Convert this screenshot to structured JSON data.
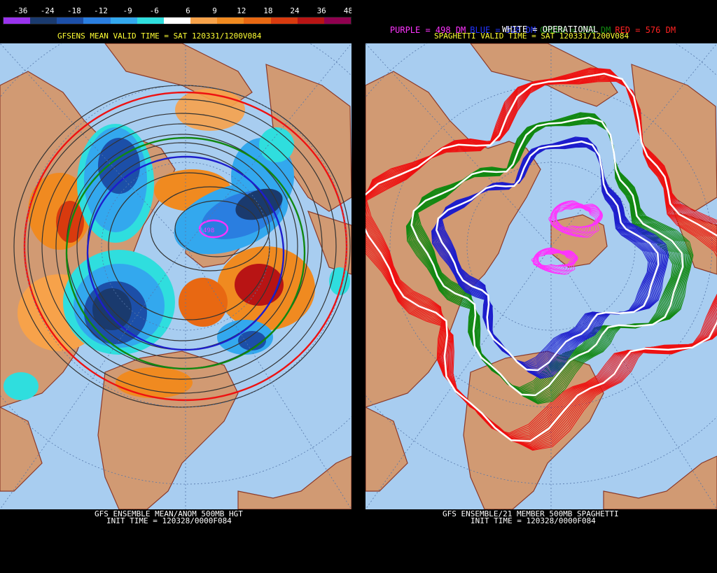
{
  "left": {
    "colorbar_labels": [
      "-36",
      "-24",
      "-18",
      "-12",
      "-9",
      "-6",
      "6",
      "9",
      "12",
      "18",
      "24",
      "36",
      "48"
    ],
    "colorbar_colors": [
      "#9933ee",
      "#1a3a6e",
      "#1c4fa8",
      "#2a7ee0",
      "#33a8ee",
      "#2fdede",
      "#ffffff",
      "#f7a24a",
      "#f08a20",
      "#e86812",
      "#d83a0e",
      "#b81414",
      "#900050"
    ],
    "header": "GFSENS MEAN VALID TIME = SAT 120331/1200V084",
    "footer_line1": "GFS ENSEMBLE MEAN/ANOM 500MB HGT",
    "footer_line2": "INIT TIME = 120328/0000F084",
    "contour_label": "498"
  },
  "right": {
    "legend": [
      {
        "text": "PURPLE = 498 DM",
        "color": "#ff33ff"
      },
      {
        "text": "BLUE = 528 DM",
        "color": "#2233ff"
      },
      {
        "text": "GREEN = 552 DM",
        "color": "#118811"
      },
      {
        "text": "RED = 576 DM",
        "color": "#ff2222"
      }
    ],
    "operational": "WHITE = OPERATIONAL",
    "header": "SPAGHETTI VALID TIME = SAT 120331/1200V084",
    "footer_line1": "GFS ENSEMBLE/21 MEMBER 500MB SPAGHETTI",
    "footer_line2": "INIT TIME = 120328/0000F084"
  },
  "colors": {
    "ocean": "#a8cdf0",
    "land": "#d19a73",
    "border": "#8b3a2a",
    "background": "#000000"
  }
}
